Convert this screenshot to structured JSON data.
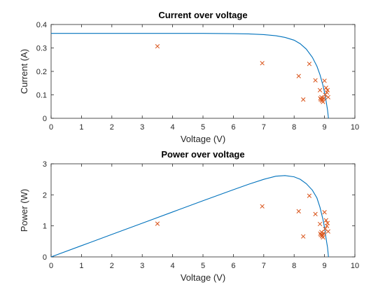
{
  "chart_data": [
    {
      "type": "line+scatter",
      "title": "Current over voltage",
      "xlabel": "Voltage (V)",
      "ylabel": "Current (A)",
      "xlim": [
        0,
        10
      ],
      "ylim": [
        0,
        0.4
      ],
      "xticks": [
        "0",
        "1",
        "2",
        "3",
        "4",
        "5",
        "6",
        "7",
        "8",
        "9",
        "10"
      ],
      "yticks": [
        "0",
        "0.1",
        "0.2",
        "0.3",
        "0.4"
      ],
      "grid": false,
      "legend": "none",
      "series": [
        {
          "kind": "line",
          "color": "#0072BD",
          "x": [
            0,
            1,
            2,
            3,
            4,
            5,
            6,
            6.5,
            7,
            7.4,
            7.7,
            8.0,
            8.2,
            8.4,
            8.6,
            8.75,
            8.85,
            8.95,
            9.0,
            9.05,
            9.1,
            9.13
          ],
          "y": [
            0.362,
            0.362,
            0.362,
            0.362,
            0.362,
            0.362,
            0.361,
            0.36,
            0.357,
            0.352,
            0.345,
            0.333,
            0.318,
            0.295,
            0.26,
            0.222,
            0.186,
            0.14,
            0.11,
            0.075,
            0.035,
            0.0
          ]
        },
        {
          "kind": "scatter",
          "marker": "x",
          "color": "#D95319",
          "x": [
            3.5,
            6.95,
            8.15,
            8.3,
            8.5,
            8.7,
            8.85,
            8.9,
            8.88,
            8.95,
            8.92,
            8.98,
            9.0,
            9.05,
            9.1,
            9.02,
            9.08,
            9.12,
            8.86,
            8.93
          ],
          "y": [
            0.307,
            0.235,
            0.18,
            0.08,
            0.232,
            0.162,
            0.12,
            0.09,
            0.08,
            0.07,
            0.075,
            0.085,
            0.16,
            0.13,
            0.12,
            0.1,
            0.11,
            0.09,
            0.085,
            0.08
          ]
        }
      ]
    },
    {
      "type": "line+scatter",
      "title": "Power over voltage",
      "xlabel": "Voltage (V)",
      "ylabel": "Power (W)",
      "xlim": [
        0,
        10
      ],
      "ylim": [
        0,
        3
      ],
      "xticks": [
        "0",
        "1",
        "2",
        "3",
        "4",
        "5",
        "6",
        "7",
        "8",
        "9",
        "10"
      ],
      "yticks": [
        "0",
        "1",
        "2",
        "3"
      ],
      "grid": false,
      "legend": "none",
      "series": [
        {
          "kind": "line",
          "color": "#0072BD",
          "x": [
            0,
            1,
            2,
            3,
            4,
            5,
            6,
            6.5,
            7,
            7.4,
            7.7,
            8.0,
            8.2,
            8.4,
            8.6,
            8.75,
            8.85,
            8.95,
            9.0,
            9.05,
            9.1,
            9.13
          ],
          "y": [
            0.0,
            0.362,
            0.724,
            1.086,
            1.448,
            1.81,
            2.166,
            2.34,
            2.5,
            2.6,
            2.62,
            2.58,
            2.5,
            2.36,
            2.15,
            1.9,
            1.6,
            1.2,
            0.95,
            0.6,
            0.3,
            0.0
          ]
        },
        {
          "kind": "scatter",
          "marker": "x",
          "color": "#D95319",
          "x": [
            3.5,
            6.95,
            8.15,
            8.3,
            8.5,
            8.7,
            8.85,
            8.9,
            8.88,
            8.95,
            8.92,
            8.98,
            9.0,
            9.05,
            9.1,
            9.02,
            9.08,
            9.12,
            8.86,
            8.93
          ],
          "y": [
            1.07,
            1.63,
            1.47,
            0.66,
            1.97,
            1.38,
            1.06,
            0.8,
            0.71,
            0.63,
            0.67,
            0.76,
            1.44,
            1.18,
            1.09,
            0.9,
            1.0,
            0.82,
            0.75,
            0.71
          ]
        }
      ]
    }
  ]
}
